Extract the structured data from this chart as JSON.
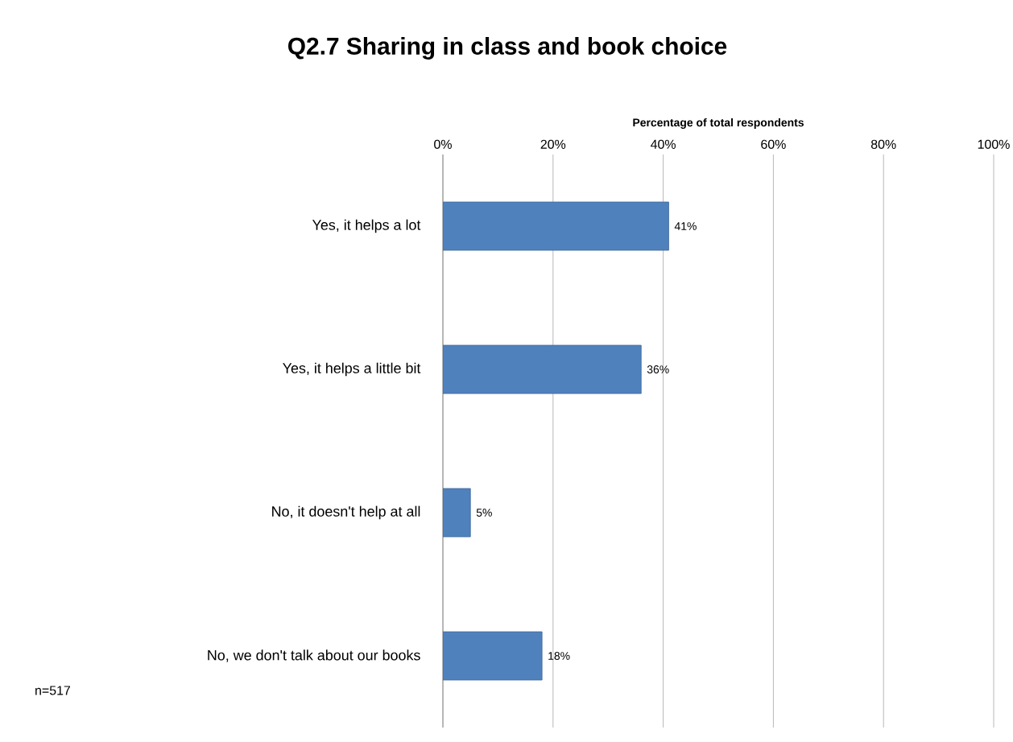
{
  "chart_data": {
    "type": "bar",
    "orientation": "horizontal",
    "title": "Q2.7 Sharing in class and book choice",
    "xlabel": "Percentage of total respondents",
    "categories": [
      "Yes, it helps a lot",
      "Yes, it helps a little bit",
      "No, it doesn't help at all",
      "No, we don't talk about our books"
    ],
    "values": [
      41,
      36,
      5,
      18
    ],
    "value_labels": [
      "41%",
      "36%",
      "5%",
      "18%"
    ],
    "color": "#4f81bd",
    "xlim": [
      0,
      100
    ],
    "xticks": [
      {
        "value": 0,
        "label": "0%"
      },
      {
        "value": 20,
        "label": "20%"
      },
      {
        "value": 40,
        "label": "40%"
      },
      {
        "value": 60,
        "label": "60%"
      },
      {
        "value": 80,
        "label": "80%"
      },
      {
        "value": 100,
        "label": "100%"
      }
    ],
    "grid": "x",
    "annotations": [
      "n=517"
    ]
  }
}
